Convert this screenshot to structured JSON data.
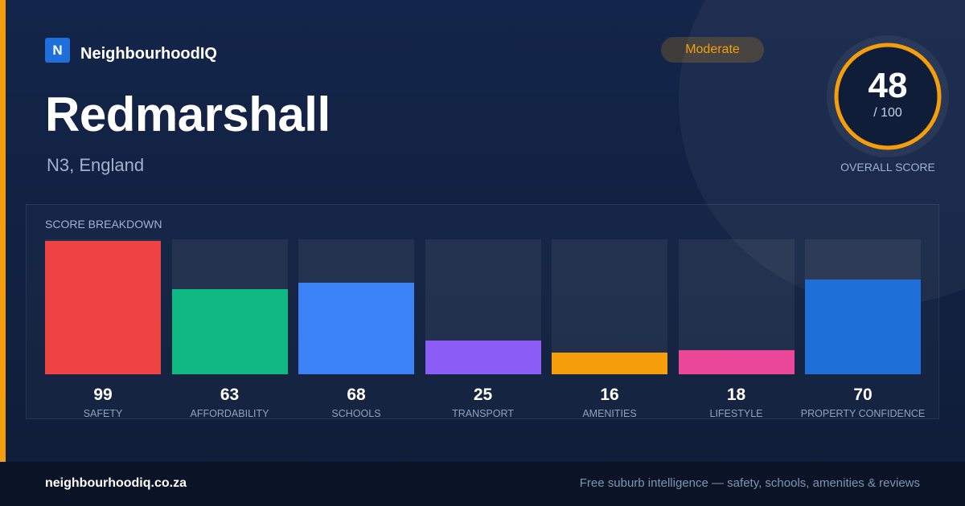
{
  "brand": {
    "logo_letter": "N",
    "name": "NeighbourhoodIQ"
  },
  "place": {
    "name": "Redmarshall",
    "region": "N3, England"
  },
  "rating_badge": {
    "label": "Moderate",
    "color": "#f59e0b"
  },
  "overall": {
    "score": "48",
    "out_of": "/ 100",
    "label": "OVERALL SCORE",
    "value": 48,
    "max": 100,
    "ring_color": "#f59e0b"
  },
  "breakdown_title": "SCORE BREAKDOWN",
  "chart_data": {
    "type": "bar",
    "categories": [
      "SAFETY",
      "AFFORDABILITY",
      "SCHOOLS",
      "TRANSPORT",
      "AMENITIES",
      "LIFESTYLE",
      "PROPERTY CONFIDENCE"
    ],
    "values": [
      99,
      63,
      68,
      25,
      16,
      18,
      70
    ],
    "colors": [
      "#ef4444",
      "#10b981",
      "#3b82f6",
      "#8b5cf6",
      "#f59e0b",
      "#ec4899",
      "#1f6fd9"
    ],
    "ylim": [
      0,
      100
    ],
    "title": "SCORE BREAKDOWN",
    "xlabel": "",
    "ylabel": ""
  },
  "footer": {
    "url": "neighbourhoodiq.co.za",
    "tagline": "Free suburb intelligence — safety, schools, amenities & reviews"
  }
}
